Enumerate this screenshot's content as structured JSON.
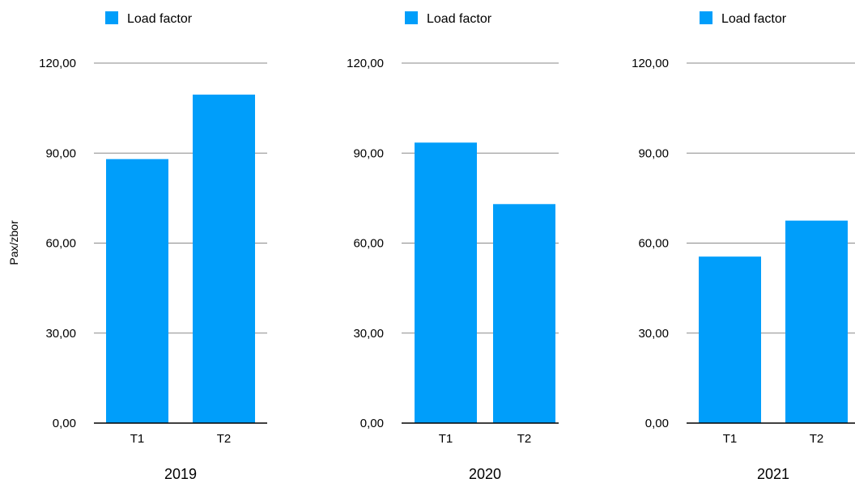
{
  "chart_data": [
    {
      "type": "bar",
      "title": "2019",
      "ylabel": "Pax/zbor",
      "categories": [
        "T1",
        "T2"
      ],
      "series": [
        {
          "name": "Load factor",
          "values": [
            88,
            109.5
          ],
          "color": "#009efa"
        }
      ],
      "ylim": [
        0,
        120
      ],
      "yticks": [
        "0,00",
        "30,00",
        "60,00",
        "90,00",
        "120,00"
      ],
      "grid": true,
      "legend": "top-left"
    },
    {
      "type": "bar",
      "title": "2020",
      "ylabel": "",
      "categories": [
        "T1",
        "T2"
      ],
      "series": [
        {
          "name": "Load factor",
          "values": [
            93.5,
            73
          ],
          "color": "#009efa"
        }
      ],
      "ylim": [
        0,
        120
      ],
      "yticks": [
        "0,00",
        "30,00",
        "60,00",
        "90,00",
        "120,00"
      ],
      "grid": true,
      "legend": "top-left"
    },
    {
      "type": "bar",
      "title": "2021",
      "ylabel": "",
      "categories": [
        "T1",
        "T2"
      ],
      "series": [
        {
          "name": "Load factor",
          "values": [
            55.5,
            67.5
          ],
          "color": "#009efa"
        }
      ],
      "ylim": [
        0,
        120
      ],
      "yticks": [
        "0,00",
        "30,00",
        "60,00",
        "90,00",
        "120,00"
      ],
      "grid": true,
      "legend": "top-left"
    }
  ]
}
